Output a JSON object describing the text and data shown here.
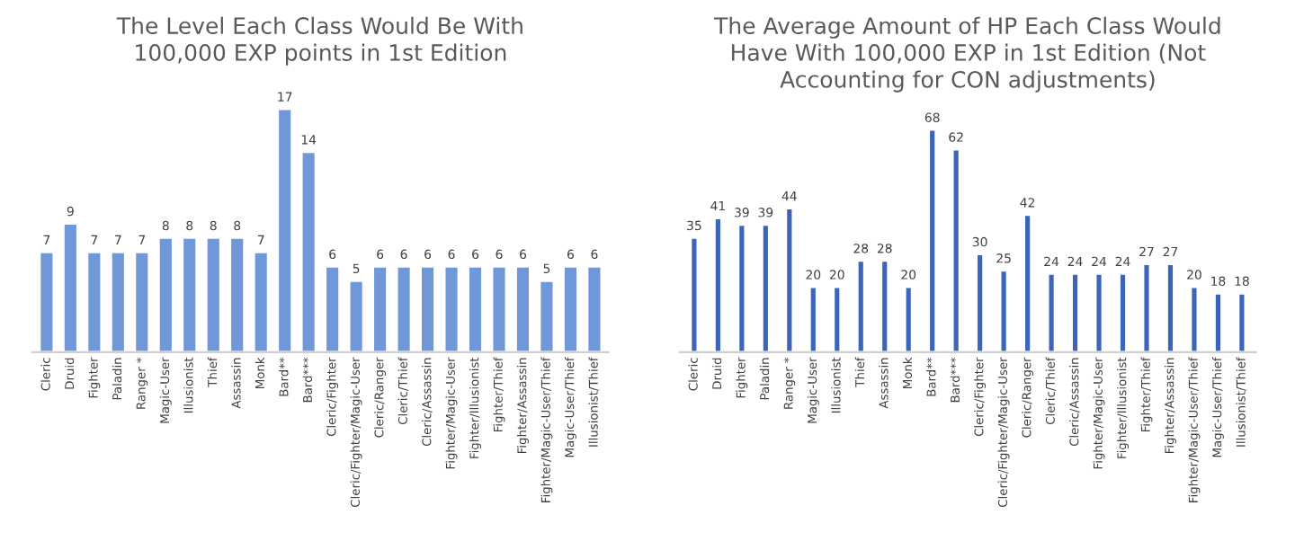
{
  "chart_data": [
    {
      "type": "bar",
      "title": "The Level Each Class Would Be With\n100,000 EXP points in 1st Edition",
      "categories": [
        "Cleric",
        "Druid",
        "Fighter",
        "Paladin",
        "Ranger *",
        "Magic-User",
        "Illusionist",
        "Thief",
        "Assassin",
        "Monk",
        "Bard**",
        "Bard***",
        "Cleric/Fighter",
        "Cleric/Fighter/Magic-User",
        "Cleric/Ranger",
        "Cleric/Thief",
        "Cleric/Assassin",
        "Fighter/Magic-User",
        "Fighter/Illusionist",
        "Fighter/Thief",
        "Fighter/Assassin",
        "Fighter/Magic-User/Thief",
        "Magic-User/Thief",
        "Illusionist/Thief"
      ],
      "values": [
        7,
        9,
        7,
        7,
        7,
        8,
        8,
        8,
        8,
        7,
        17,
        14,
        6,
        5,
        6,
        6,
        6,
        6,
        6,
        6,
        6,
        5,
        6,
        6
      ],
      "color": "#7097d8",
      "data_labels": true,
      "grid": false,
      "legend": false
    },
    {
      "type": "bar",
      "title": "The Average Amount of HP Each Class Would\nHave With 100,000 EXP in 1st Edition (Not\nAccounting for CON adjustments)",
      "categories": [
        "Cleric",
        "Druid",
        "Fighter",
        "Paladin",
        "Ranger *",
        "Magic-User",
        "Illusionist",
        "Thief",
        "Assassin",
        "Monk",
        "Bard**",
        "Bard***",
        "Cleric/Fighter",
        "Cleric/Fighter/Magic-User",
        "Cleric/Ranger",
        "Cleric/Thief",
        "Cleric/Assassin",
        "Fighter/Magic-User",
        "Fighter/Illusionist",
        "Fighter/Thief",
        "Fighter/Assassin",
        "Fighter/Magic-User/Thief",
        "Magic-User/Thief",
        "Illusionist/Thief"
      ],
      "values": [
        35,
        41,
        39,
        39,
        44,
        20,
        20,
        28,
        28,
        20,
        68,
        62,
        30,
        25,
        42,
        24,
        24,
        24,
        24,
        27,
        27,
        20,
        18,
        18
      ],
      "color": "#3b65b9",
      "data_labels": true,
      "grid": false,
      "legend": false
    }
  ]
}
